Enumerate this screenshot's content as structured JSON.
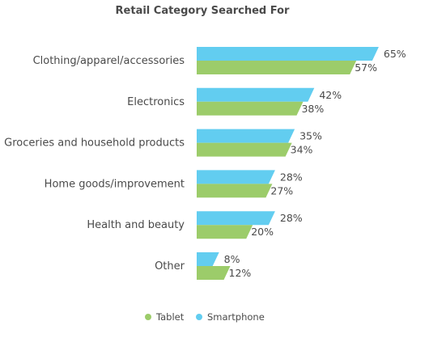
{
  "chart_data": {
    "type": "bar",
    "orientation": "horizontal",
    "title": "Retail Category Searched For",
    "categories": [
      "Clothing/apparel/accessories",
      "Electronics",
      "Groceries and household products",
      "Home goods/improvement",
      "Health and beauty",
      "Other"
    ],
    "series": [
      {
        "name": "Smartphone",
        "values": [
          65,
          42,
          35,
          28,
          28,
          8
        ],
        "labels": [
          "65%",
          "42%",
          "35%",
          "28%",
          "28%",
          "8%"
        ],
        "color": "#62cdf0"
      },
      {
        "name": "Tablet",
        "values": [
          57,
          38,
          34,
          27,
          20,
          12
        ],
        "labels": [
          "57%",
          "38%",
          "34%",
          "27%",
          "20%",
          "12%"
        ],
        "color": "#9ccc6a"
      }
    ],
    "xlim": [
      0,
      70
    ],
    "grid": false,
    "legend": "bottom",
    "legend_order": [
      "Tablet",
      "Smartphone"
    ]
  }
}
